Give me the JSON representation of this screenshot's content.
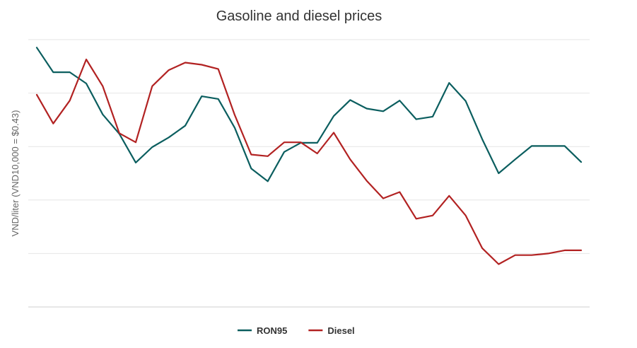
{
  "chart_data": {
    "type": "line",
    "title": "Gasoline and diesel prices",
    "xlabel": "",
    "ylabel": "VND/liter (VND10,000 = $0.43)",
    "ylim": [
      0,
      5
    ],
    "grid": true,
    "legend_position": "bottom",
    "x": [
      1,
      2,
      3,
      4,
      5,
      6,
      7,
      8,
      9,
      10,
      11,
      12,
      13,
      14,
      15,
      16,
      17,
      18,
      19,
      20,
      21,
      22,
      23,
      24,
      25,
      26,
      27,
      28,
      29,
      30,
      31,
      32,
      33,
      34
    ],
    "series": [
      {
        "name": "RON95",
        "color": "#0b5e5f",
        "values": [
          4.85,
          4.39,
          4.39,
          4.18,
          3.6,
          3.24,
          2.7,
          2.99,
          3.17,
          3.39,
          3.94,
          3.89,
          3.35,
          2.59,
          2.35,
          2.9,
          3.07,
          3.07,
          3.57,
          3.87,
          3.71,
          3.66,
          3.86,
          3.51,
          3.56,
          4.19,
          3.85,
          3.14,
          2.5,
          2.76,
          3.01,
          3.01,
          3.01,
          2.71
        ],
        "color_name": "teal"
      },
      {
        "name": "Diesel",
        "color": "#b22222",
        "values": [
          3.97,
          3.43,
          3.86,
          4.63,
          4.13,
          3.25,
          3.08,
          4.13,
          4.43,
          4.57,
          4.53,
          4.45,
          3.59,
          2.85,
          2.82,
          3.08,
          3.08,
          2.87,
          3.26,
          2.76,
          2.36,
          2.03,
          2.15,
          1.65,
          1.71,
          2.08,
          1.71,
          1.1,
          0.8,
          0.97,
          0.97,
          1.0,
          1.06,
          1.06
        ],
        "color_name": "firebrick"
      }
    ]
  }
}
